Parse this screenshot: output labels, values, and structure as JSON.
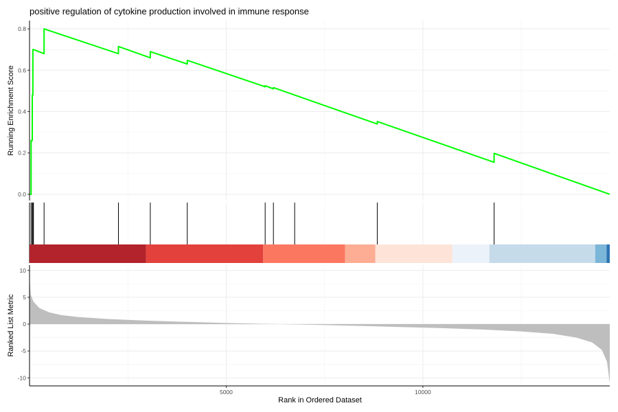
{
  "chart_data": {
    "type": "line",
    "title": "positive regulation of cytokine production involved in immune response",
    "xlabel": "Rank in Ordered Dataset",
    "xlim": [
      0,
      14750
    ],
    "x_ticks": [
      5000,
      10000
    ],
    "x_tick_labels": [
      "5000",
      "10000"
    ],
    "enrichment": {
      "ylabel": "Running Enrichment Score",
      "ylim": [
        -0.03,
        0.84
      ],
      "y_ticks": [
        0.0,
        0.2,
        0.4,
        0.6,
        0.8
      ],
      "y_tick_labels": [
        "0.0",
        "0.2",
        "0.4",
        "0.6",
        "0.8"
      ],
      "line_color": "#00ff00",
      "x": [
        0,
        40,
        40,
        70,
        70,
        85,
        85,
        100,
        100,
        370,
        370,
        2260,
        2260,
        3070,
        3070,
        4010,
        4010,
        5990,
        5990,
        6200,
        6200,
        6740,
        6740,
        8840,
        8840,
        11810,
        11810,
        14750
      ],
      "y": [
        0.0,
        0.0,
        0.26,
        0.26,
        0.48,
        0.48,
        0.7,
        0.7,
        0.7,
        0.68,
        0.8,
        0.68,
        0.715,
        0.66,
        0.69,
        0.63,
        0.648,
        0.52,
        0.525,
        0.51,
        0.516,
        0.48,
        0.48,
        0.34,
        0.352,
        0.155,
        0.198,
        0.0
      ]
    },
    "hits": {
      "positions": [
        40,
        70,
        85,
        100,
        370,
        2260,
        3070,
        4010,
        5990,
        6200,
        6740,
        8840,
        11810
      ]
    },
    "color_bar": {
      "segments": [
        {
          "start": 0,
          "end": 2960,
          "color": "#b2232b"
        },
        {
          "start": 2960,
          "end": 5940,
          "color": "#e3413c"
        },
        {
          "start": 5940,
          "end": 8020,
          "color": "#fc7760"
        },
        {
          "start": 8020,
          "end": 8790,
          "color": "#fcad94"
        },
        {
          "start": 8790,
          "end": 10750,
          "color": "#fde3d8"
        },
        {
          "start": 10750,
          "end": 11690,
          "color": "#ecf2fa"
        },
        {
          "start": 11690,
          "end": 14380,
          "color": "#c5dbea"
        },
        {
          "start": 14380,
          "end": 14670,
          "color": "#7bb5d8"
        },
        {
          "start": 14670,
          "end": 14750,
          "color": "#2d74b3"
        }
      ]
    },
    "ranked_metric": {
      "ylabel": "Ranked List Metric",
      "ylim": [
        -11.5,
        11
      ],
      "y_ticks": [
        -10,
        -5,
        0,
        5,
        10
      ],
      "y_tick_labels": [
        "-10",
        "-5",
        "0",
        "5",
        "10"
      ],
      "fill_color": "#bebebe",
      "x": [
        0,
        30,
        100,
        250,
        500,
        800,
        1200,
        2000,
        3000,
        4000,
        5000,
        6000,
        6600,
        7400,
        8500,
        9500,
        10500,
        11500,
        12500,
        13300,
        13900,
        14300,
        14550,
        14680,
        14750
      ],
      "y": [
        8.5,
        5.5,
        4.2,
        3.0,
        2.2,
        1.7,
        1.35,
        0.95,
        0.65,
        0.42,
        0.22,
        0.06,
        -0.02,
        -0.15,
        -0.35,
        -0.55,
        -0.75,
        -1.0,
        -1.35,
        -1.8,
        -2.5,
        -3.4,
        -4.8,
        -7.0,
        -11.0
      ]
    },
    "grid": true
  }
}
